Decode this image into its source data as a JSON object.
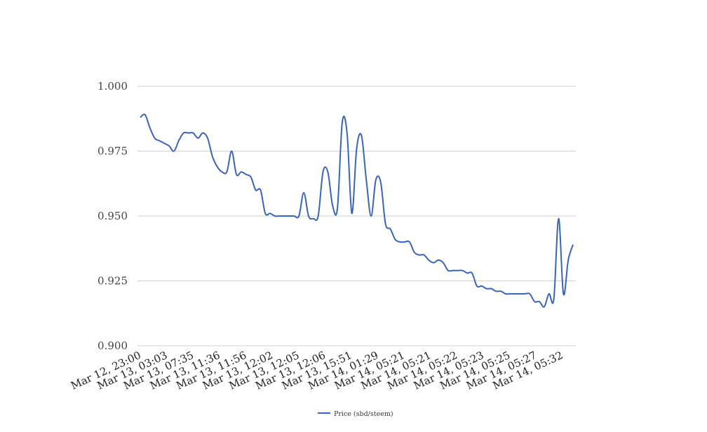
{
  "chart_data": {
    "type": "line",
    "title": "",
    "xlabel": "",
    "ylabel": "",
    "ylim": [
      0.9,
      1.0
    ],
    "yticks": [
      "0.900",
      "0.925",
      "0.950",
      "0.975",
      "1.000"
    ],
    "grid": true,
    "legend_position": "bottom-center",
    "x_tick_labels": [
      "Mar 12, 23:00",
      "Mar 13, 03:03",
      "Mar 13, 07:35",
      "Mar 13, 11:36",
      "Mar 13, 11:56",
      "Mar 13, 12:02",
      "Mar 13, 12:05",
      "Mar 13, 12:06",
      "Mar 13, 15:51",
      "Mar 14, 01:29",
      "Mar 14, 05:21",
      "Mar 14, 05:21",
      "Mar 14, 05:22",
      "Mar 14, 05:23",
      "Mar 14, 05:25",
      "Mar 14, 05:27",
      "Mar 14, 05:32"
    ],
    "series": [
      {
        "name": "Price (sbd/steem)",
        "color": "#3a64b8",
        "values": [
          0.988,
          0.989,
          0.984,
          0.98,
          0.979,
          0.978,
          0.977,
          0.975,
          0.979,
          0.982,
          0.982,
          0.982,
          0.98,
          0.982,
          0.98,
          0.973,
          0.969,
          0.967,
          0.967,
          0.975,
          0.966,
          0.967,
          0.966,
          0.965,
          0.96,
          0.96,
          0.951,
          0.951,
          0.95,
          0.95,
          0.95,
          0.95,
          0.95,
          0.95,
          0.959,
          0.95,
          0.949,
          0.95,
          0.967,
          0.967,
          0.954,
          0.953,
          0.986,
          0.982,
          0.951,
          0.976,
          0.981,
          0.964,
          0.95,
          0.964,
          0.963,
          0.947,
          0.945,
          0.941,
          0.94,
          0.94,
          0.94,
          0.936,
          0.935,
          0.935,
          0.933,
          0.932,
          0.933,
          0.932,
          0.929,
          0.929,
          0.929,
          0.929,
          0.928,
          0.928,
          0.923,
          0.923,
          0.922,
          0.922,
          0.921,
          0.921,
          0.92,
          0.92,
          0.92,
          0.92,
          0.92,
          0.92,
          0.917,
          0.917,
          0.915,
          0.92,
          0.918,
          0.949,
          0.92,
          0.933,
          0.939
        ]
      }
    ]
  }
}
